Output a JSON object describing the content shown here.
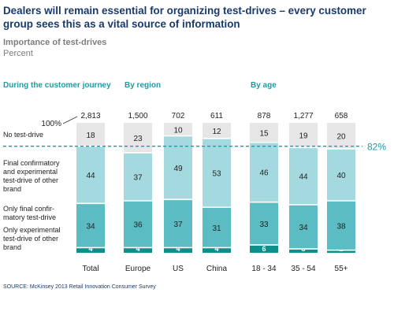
{
  "header": {
    "title": "Dealers will remain essential for organizing test-drives – every customer group sees this as a vital source of information",
    "subtitle": "Importance of test-drives",
    "unit": "Percent"
  },
  "source": "SOURCE: McKinsey 2013 Retail Innovation Consumer Survey",
  "chart_data": {
    "type": "bar",
    "stacked": true,
    "title": "Dealers will remain essential for organizing test-drives – every customer group sees this as a vital source of information",
    "subtitle": "Importance of test-drives",
    "ylabel": "Percent",
    "groups": [
      {
        "label": "During the customer journey",
        "categories": [
          "Total"
        ]
      },
      {
        "label": "By region",
        "categories": [
          "Europe",
          "US",
          "China"
        ]
      },
      {
        "label": "By age",
        "categories": [
          "18 - 34",
          "35 - 54",
          "55+"
        ]
      }
    ],
    "categories": [
      "Total",
      "Europe",
      "US",
      "China",
      "18 - 34",
      "35 - 54",
      "55+"
    ],
    "sample_sizes": [
      "2,813",
      "1,500",
      "702",
      "611",
      "878",
      "1,277",
      "658"
    ],
    "total_label": "100%",
    "series": [
      {
        "name": "Only experimental test-drive of other brand",
        "color": "#0f8f8c",
        "values": [
          4,
          4,
          4,
          4,
          6,
          3,
          2
        ]
      },
      {
        "name": "Only final confirmatory test-drive",
        "color": "#5bbcc3",
        "values": [
          34,
          36,
          37,
          31,
          33,
          34,
          38
        ]
      },
      {
        "name": "Final confirmatory and experimental test-drive of other brand",
        "color": "#a4dadf",
        "values": [
          44,
          37,
          49,
          53,
          46,
          44,
          40
        ]
      },
      {
        "name": "No test-drive",
        "color": "#e6e6e6",
        "values": [
          18,
          23,
          10,
          12,
          15,
          19,
          20
        ]
      }
    ],
    "series_labels": [
      {
        "series": 0,
        "lines": [
          "Only experimental",
          "test-drive of other",
          "brand"
        ]
      },
      {
        "series": 1,
        "lines": [
          "Only final confir-",
          "matory test-drive"
        ]
      },
      {
        "series": 2,
        "lines": [
          "Final confirmatory",
          "and experimental",
          "test-drive of other",
          "brand"
        ]
      },
      {
        "series": 3,
        "lines": [
          "No test-drive"
        ]
      }
    ],
    "reference_line": {
      "value": 82,
      "label": "82%"
    },
    "ylim": [
      0,
      100
    ]
  }
}
